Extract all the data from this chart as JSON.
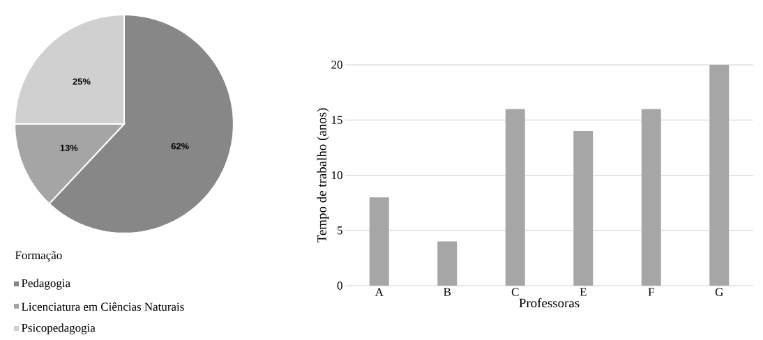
{
  "chart_data": [
    {
      "type": "pie",
      "legend_title": "Formação",
      "categories": [
        "Pedagogia",
        "Licenciatura em Ciências Naturais",
        "Psicopedagogia"
      ],
      "values": [
        62,
        13,
        25
      ],
      "value_labels": [
        "62%",
        "13%",
        "25%"
      ],
      "colors": [
        "#878787",
        "#a5a5a5",
        "#d0d0d0"
      ],
      "legend": "bottom"
    },
    {
      "type": "bar",
      "categories": [
        "A",
        "B",
        "C",
        "E",
        "F",
        "G"
      ],
      "values": [
        8,
        4,
        16,
        14,
        16,
        20
      ],
      "color": "#a6a6a6",
      "xlabel": "Professoras",
      "ylabel": "Tempo de trabalho  (anos)",
      "ylim": [
        0,
        20
      ],
      "yticks": [
        0,
        5,
        10,
        15,
        20
      ],
      "grid": "y"
    }
  ]
}
